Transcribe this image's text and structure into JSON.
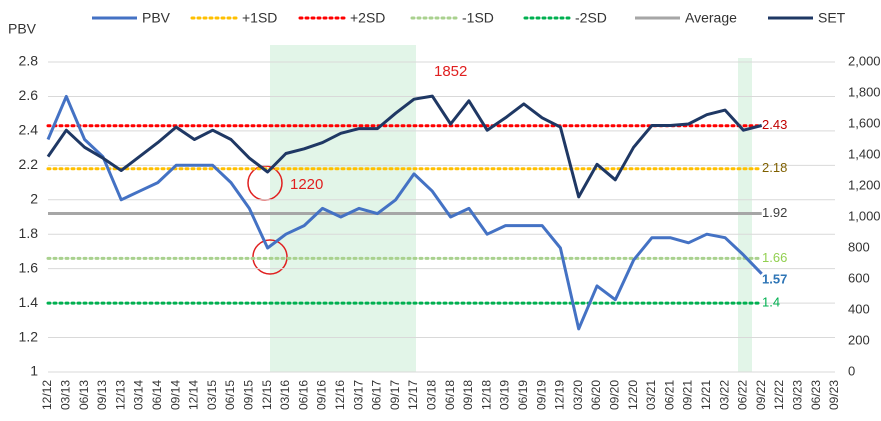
{
  "chart_data": {
    "type": "line",
    "ylabel": "PBV",
    "categories": [
      "12/12",
      "03/13",
      "06/13",
      "09/13",
      "12/13",
      "03/14",
      "06/14",
      "09/14",
      "12/14",
      "03/15",
      "06/15",
      "09/15",
      "12/15",
      "03/16",
      "06/16",
      "09/16",
      "12/16",
      "03/17",
      "06/17",
      "09/17",
      "12/17",
      "03/18",
      "06/18",
      "09/18",
      "12/18",
      "03/19",
      "06/19",
      "09/19",
      "12/19",
      "03/20",
      "06/20",
      "09/20",
      "12/20",
      "03/21",
      "06/21",
      "09/21",
      "12/21",
      "03/22",
      "06/22",
      "09/22",
      "12/22",
      "03/23",
      "06/23",
      "09/23"
    ],
    "series": [
      {
        "name": "PBV",
        "color": "#4472c4",
        "axis": "y",
        "last_label": 1.57,
        "last_label_color": "#2e75b6",
        "values": [
          2.35,
          2.6,
          2.35,
          2.25,
          2.0,
          2.05,
          2.1,
          2.2,
          2.2,
          2.2,
          2.1,
          1.95,
          1.72,
          1.8,
          1.85,
          1.95,
          1.9,
          1.95,
          1.92,
          2.0,
          2.15,
          2.05,
          1.9,
          1.95,
          1.8,
          1.85,
          1.85,
          1.85,
          1.72,
          1.25,
          1.5,
          1.42,
          1.65,
          1.78,
          1.78,
          1.75,
          1.8,
          1.78,
          1.68,
          1.57,
          null,
          null,
          null,
          null
        ]
      },
      {
        "name": "SET",
        "color": "#1f3864",
        "axis": "y2",
        "values": [
          1390,
          1560,
          1450,
          1380,
          1300,
          1390,
          1480,
          1580,
          1500,
          1560,
          1500,
          1380,
          1290,
          1410,
          1440,
          1480,
          1540,
          1570,
          1570,
          1670,
          1760,
          1780,
          1600,
          1750,
          1560,
          1640,
          1730,
          1640,
          1580,
          1130,
          1340,
          1240,
          1450,
          1590,
          1590,
          1600,
          1660,
          1690,
          1560,
          1590,
          null,
          null,
          null,
          null
        ]
      }
    ],
    "reference_lines": [
      {
        "name": "+1SD",
        "color": "#ffc000",
        "value": 2.18,
        "label_color": "#7f6000"
      },
      {
        "name": "+2SD",
        "color": "#ff0000",
        "value": 2.43,
        "label_color": "#c00000"
      },
      {
        "name": "-1SD",
        "color": "#a9d18e",
        "value": 1.66,
        "label_color": "#92d050"
      },
      {
        "name": "-2SD",
        "color": "#00b050",
        "value": 1.4,
        "label_color": "#00b050"
      },
      {
        "name": "Average",
        "color": "#a6a6a6",
        "value": 1.92,
        "label_color": "#404040"
      }
    ],
    "annotations": [
      {
        "text": "1852",
        "color": "#e02020"
      },
      {
        "text": "1220",
        "color": "#e02020"
      }
    ],
    "ylim": [
      1,
      2.8
    ],
    "yticks": [
      1,
      1.2,
      1.4,
      1.6,
      1.8,
      2,
      2.2,
      2.4,
      2.6,
      2.8
    ],
    "y2lim": [
      0,
      2000
    ],
    "y2ticks": [
      0,
      200,
      400,
      600,
      800,
      {
        "value": 1000,
        "label": "1,000"
      },
      {
        "value": 1200,
        "label": "1,200"
      },
      {
        "value": 1400,
        "label": "1,400"
      },
      {
        "value": 1600,
        "label": "1,600"
      },
      {
        "value": 1800,
        "label": "1,800"
      },
      {
        "value": 2000,
        "label": "2,000"
      }
    ],
    "grid": true
  }
}
